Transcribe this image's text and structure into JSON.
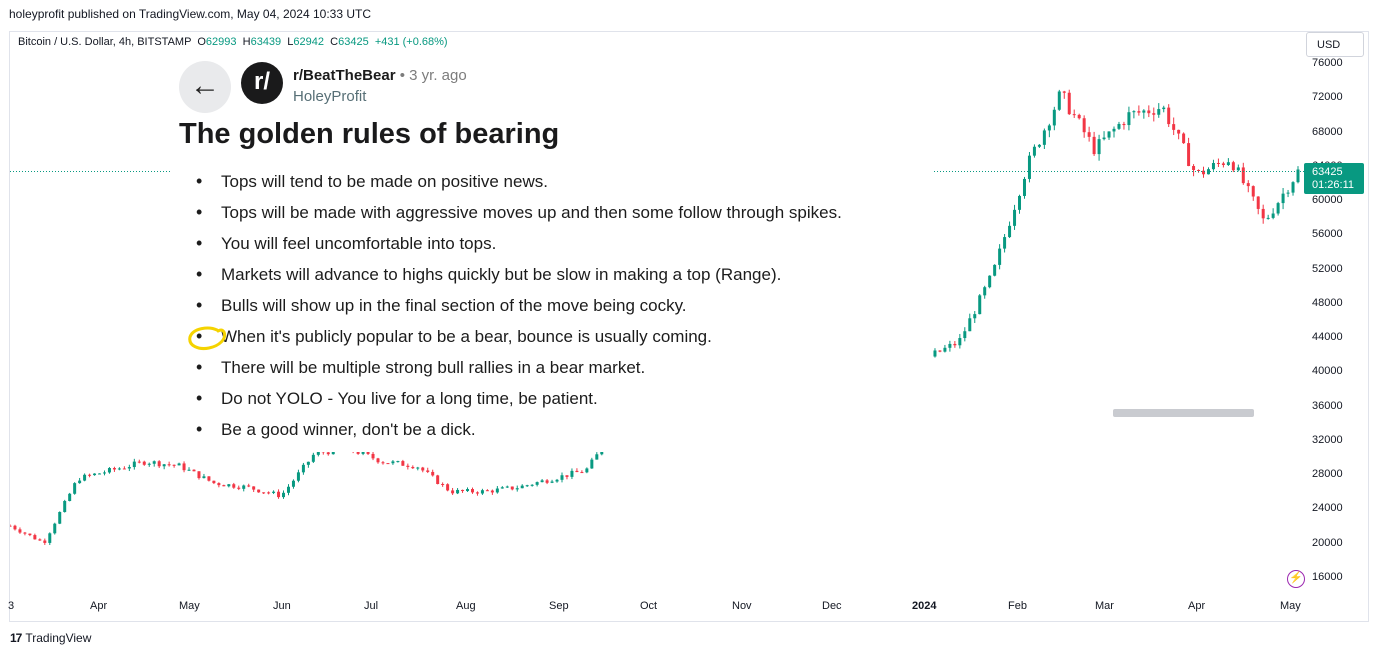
{
  "header": {
    "published": "holeyprofit published on TradingView.com, May 04, 2024 10:33 UTC"
  },
  "symbol": {
    "name": "Bitcoin / U.S. Dollar, 4h, BITSTAMP",
    "o_label": "O",
    "o": "62993",
    "h_label": "H",
    "h": "63439",
    "l_label": "L",
    "l": "62942",
    "c_label": "C",
    "c": "63425",
    "change": "+431 (+0.68%)"
  },
  "currency_button": "USD",
  "price_tag": {
    "price": "63425",
    "countdown": "01:26:11"
  },
  "y_axis": [
    "76000",
    "72000",
    "68000",
    "64000",
    "60000",
    "56000",
    "52000",
    "48000",
    "44000",
    "40000",
    "36000",
    "32000",
    "28000",
    "24000",
    "20000",
    "16000"
  ],
  "x_axis": [
    "3",
    "Apr",
    "May",
    "Jun",
    "Jul",
    "Aug",
    "Sep",
    "Oct",
    "Nov",
    "Dec",
    "2024",
    "Feb",
    "Mar",
    "Apr",
    "May"
  ],
  "footer": {
    "brand": "TradingView",
    "logo": "17"
  },
  "colors": {
    "up": "#089981",
    "down": "#f23645",
    "accent": "#089981",
    "highlight": "#f5d300"
  },
  "post": {
    "subreddit": "r/BeatTheBear",
    "age": "• 3 yr. ago",
    "author": "HoleyProfit",
    "avatar_text": "r/",
    "title": "The golden rules of bearing",
    "rules": [
      "Tops will tend to be made on positive news.",
      "Tops will be made with aggressive moves up and then some follow through spikes.",
      "You will feel uncomfortable into tops.",
      "Markets will advance to highs quickly but be slow in making a top (Range).",
      "Bulls will show up in the final section of the move being cocky.",
      "When it's publicly popular to be a bear, bounce is usually coming.",
      "There will be multiple strong bull rallies in a bear market.",
      "Do not YOLO - You live for a long time, be patient.",
      "Be a good winner, don't be a dick."
    ]
  },
  "chart_data": {
    "type": "candlestick",
    "y_range": [
      16000,
      76000
    ],
    "x_labels": [
      "3",
      "Apr",
      "May",
      "Jun",
      "Jul",
      "Aug",
      "Sep",
      "Oct",
      "Nov",
      "Dec",
      "2024",
      "Feb",
      "Mar",
      "Apr",
      "May"
    ],
    "approx_path": [
      [
        "3",
        22000
      ],
      [
        "",
        20000
      ],
      [
        "",
        27500
      ],
      [
        "Apr",
        28500
      ],
      [
        "",
        29500
      ],
      [
        "May",
        29000
      ],
      [
        "",
        27000
      ],
      [
        "Jun",
        26500
      ],
      [
        "",
        25500
      ],
      [
        "Jul",
        30500
      ],
      [
        "",
        31000
      ],
      [
        "Aug",
        29500
      ],
      [
        "",
        29000
      ],
      [
        "",
        26000
      ],
      [
        "Sep",
        26000
      ],
      [
        "",
        26500
      ],
      [
        "Oct",
        27500
      ],
      [
        "",
        28500
      ],
      [
        "",
        34000
      ],
      [
        "Nov",
        35500
      ],
      [
        "",
        37500
      ],
      [
        "Dec",
        42000
      ],
      [
        "",
        44000
      ],
      [
        "",
        43000
      ],
      [
        "2024",
        44500
      ],
      [
        "",
        47500
      ],
      [
        "",
        42500
      ],
      [
        "Feb",
        41500
      ],
      [
        "",
        43500
      ],
      [
        "",
        51500
      ],
      [
        "Mar",
        64000
      ],
      [
        "",
        72500
      ],
      [
        "",
        66000
      ],
      [
        "Apr",
        70000
      ],
      [
        "",
        71000
      ],
      [
        "",
        63000
      ],
      [
        "",
        65000
      ],
      [
        "May",
        57500
      ],
      [
        "",
        63425
      ]
    ],
    "last_price": 63425
  }
}
